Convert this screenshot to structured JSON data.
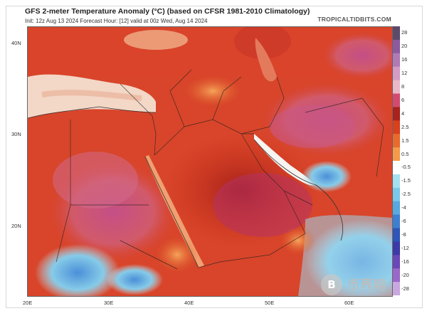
{
  "header": {
    "title": "GFS 2-meter Temperature Anomaly (°C) (based on CFSR 1981-2010 Climatology)",
    "subtitle": "Init: 12z Aug 13 2024   Forecast Hour: [12]   valid at 00z Wed, Aug 14 2024",
    "brand": "TROPICALTIDBITS.COM"
  },
  "axes": {
    "lat_labels": [
      "40N",
      "30N",
      "20N"
    ],
    "lon_labels": [
      "20E",
      "30E",
      "40E",
      "50E",
      "60E"
    ]
  },
  "colorbar": {
    "ticks": [
      "28",
      "20",
      "16",
      "12",
      "8",
      "6",
      "4",
      "2.5",
      "1.5",
      "0.5",
      "-0.5",
      "-1.5",
      "-2.5",
      "-4",
      "-6",
      "-8",
      "-12",
      "-16",
      "-20",
      "-28"
    ],
    "colors": [
      "#5c4a6b",
      "#8c5a9e",
      "#b07ab5",
      "#d39cc4",
      "#e9b9c9",
      "#d24b6f",
      "#a8231c",
      "#d8401e",
      "#e86b2c",
      "#f59a4a",
      "#ffffff",
      "#a6e0f0",
      "#7cc8ea",
      "#5aa8e0",
      "#3f7fd0",
      "#2f56b8",
      "#3b3aa6",
      "#6a48b8",
      "#9a68c8",
      "#c9a8e0"
    ]
  },
  "watermark": {
    "text": "币界网"
  }
}
